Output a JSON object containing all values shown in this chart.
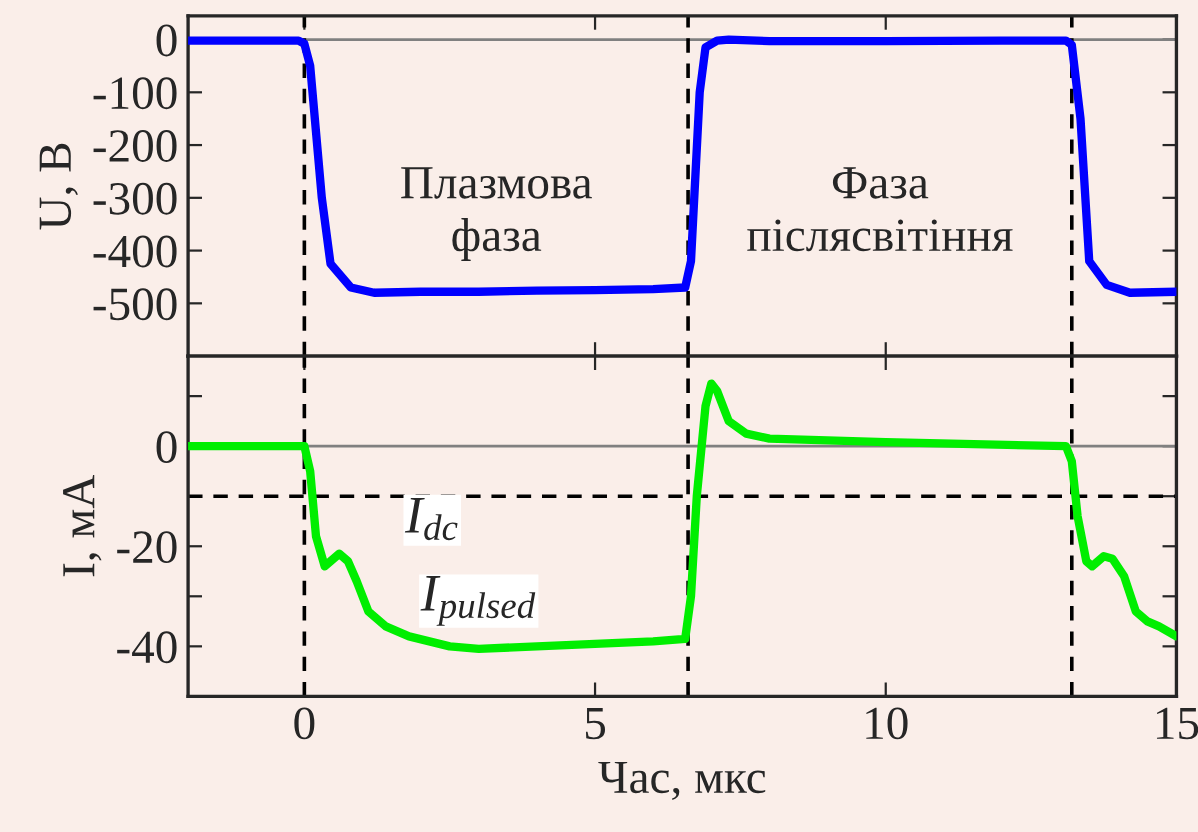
{
  "chart_data": [
    {
      "type": "line",
      "ylabel": "U, В",
      "xlim": [
        -2,
        15
      ],
      "ylim": [
        -600,
        45
      ],
      "yticks": [
        0,
        -100,
        -200,
        -300,
        -400,
        -500
      ],
      "tick_labels": "y",
      "grid": false,
      "legend": false,
      "series": [
        {
          "color": "#0000ff",
          "x": [
            -2,
            -0.1,
            0,
            0.1,
            0.3,
            0.45,
            0.8,
            1.2,
            2,
            3,
            4,
            5,
            6,
            6.55,
            6.65,
            6.8,
            6.9,
            7.1,
            7.3,
            8,
            10,
            12,
            13.1,
            13.2,
            13.35,
            13.5,
            13.8,
            14.2,
            15
          ],
          "values": [
            -2,
            -2,
            -8,
            -50,
            -300,
            -425,
            -470,
            -480,
            -478,
            -478,
            -476,
            -475,
            -473,
            -470,
            -420,
            -100,
            -15,
            -2,
            0,
            -3,
            -3,
            -2,
            -2,
            -10,
            -150,
            -420,
            -465,
            -480,
            -478
          ]
        }
      ],
      "ref_lines": [
        {
          "axis": "y",
          "value": 0,
          "color": "#808080",
          "line_style": "solid"
        },
        {
          "axis": "x",
          "value": 0,
          "color": "#000000",
          "line_style": "dashed"
        },
        {
          "axis": "x",
          "value": 6.6,
          "color": "#000000",
          "line_style": "dashed"
        },
        {
          "axis": "x",
          "value": 13.2,
          "color": "#000000",
          "line_style": "dashed"
        }
      ],
      "annotations": [
        "Плазмова\nфаза",
        "Фаза\nпіслясвітіння"
      ]
    },
    {
      "type": "line",
      "xlabel": "Час, мкс",
      "ylabel": "I, мА",
      "xlim": [
        -2,
        15
      ],
      "xticks": [
        0,
        5,
        10,
        15
      ],
      "ylim": [
        -50,
        18
      ],
      "yticks": [
        {
          "value": 10,
          "label": null
        },
        0,
        {
          "value": -10,
          "label": null
        },
        -20,
        {
          "value": -30,
          "label": null
        },
        -40
      ],
      "grid": false,
      "legend": false,
      "series": [
        {
          "color": "#00ee00",
          "x": [
            -2,
            0,
            0.1,
            0.2,
            0.35,
            0.45,
            0.6,
            0.75,
            0.9,
            1.1,
            1.4,
            1.8,
            2.5,
            3,
            4,
            5,
            6,
            6.55,
            6.65,
            6.75,
            6.9,
            7.0,
            7.1,
            7.3,
            7.6,
            8,
            10,
            13.1,
            13.2,
            13.3,
            13.45,
            13.55,
            13.75,
            13.9,
            14.1,
            14.3,
            14.5,
            14.7,
            15
          ],
          "values": [
            0,
            0,
            -5,
            -18,
            -24,
            -23,
            -21.5,
            -23,
            -27,
            -33,
            -36,
            -38,
            -40,
            -40.5,
            -40,
            -39.5,
            -39,
            -38.5,
            -30,
            -10,
            8,
            12.5,
            11,
            5,
            2.5,
            1.5,
            0.8,
            0,
            -3,
            -14,
            -23,
            -24,
            -22,
            -22.5,
            -26,
            -33,
            -35,
            -36,
            -38
          ]
        }
      ],
      "ref_lines": [
        {
          "axis": "y",
          "value": 0,
          "color": "#808080",
          "line_style": "solid"
        },
        {
          "axis": "y",
          "value": -10,
          "label": "I$_{dc}$",
          "color": "#000000",
          "line_style": "dashed"
        },
        {
          "axis": "x",
          "value": 0,
          "color": "#000000",
          "line_style": "dashed"
        },
        {
          "axis": "x",
          "value": 6.6,
          "color": "#000000",
          "line_style": "dashed"
        },
        {
          "axis": "x",
          "value": 13.2,
          "color": "#000000",
          "line_style": "dashed"
        }
      ],
      "annotations": [
        "I$_{pulsed}$"
      ]
    }
  ]
}
